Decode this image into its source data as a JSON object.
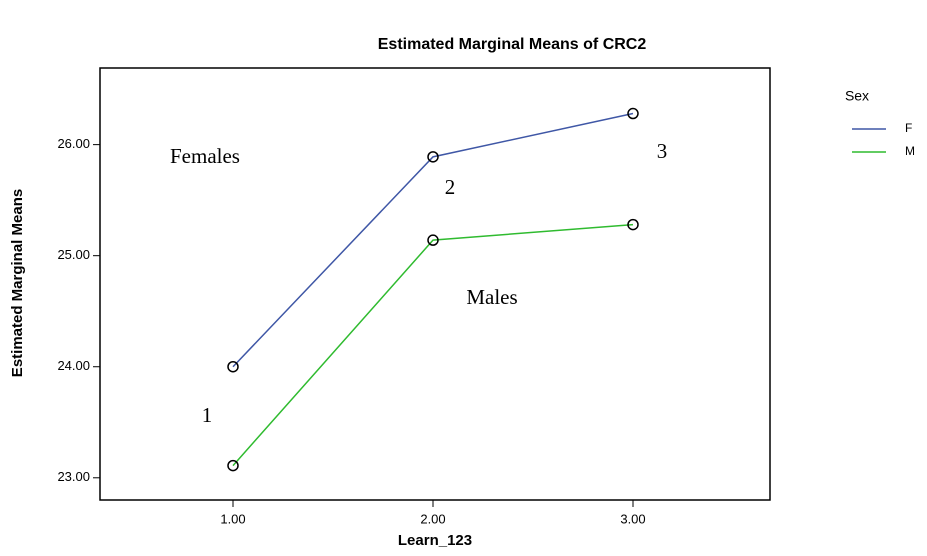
{
  "chart_data": {
    "type": "line",
    "title": "Estimated Marginal Means of CRC2",
    "x_label": "Learn_123",
    "y_label": "Estimated Marginal Means",
    "legend_title": "Sex",
    "x": [
      1,
      2,
      3
    ],
    "series": [
      {
        "name": "F",
        "color": "#3f57a6",
        "values": [
          24.0,
          25.89,
          26.28
        ]
      },
      {
        "name": "M",
        "color": "#2fbb2f",
        "values": [
          23.11,
          25.14,
          25.28
        ]
      }
    ],
    "xlim": [
      0.335,
      3.685
    ],
    "xticks": [
      {
        "value": 1,
        "label": "1.00"
      },
      {
        "value": 2,
        "label": "2.00"
      },
      {
        "value": 3,
        "label": "3.00"
      }
    ],
    "ylim": [
      22.8,
      26.69
    ],
    "yticks": [
      {
        "value": 23,
        "label": "23.00"
      },
      {
        "value": 24,
        "label": "24.00"
      },
      {
        "value": 25,
        "label": "25.00"
      },
      {
        "value": 26,
        "label": "26.00"
      }
    ],
    "legend": "right",
    "annotations": [
      "Females",
      "2",
      "3",
      "Males",
      "1"
    ]
  }
}
